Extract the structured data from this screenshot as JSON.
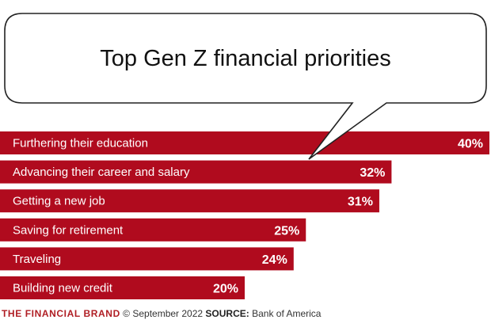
{
  "chart_data": {
    "type": "bar",
    "orientation": "horizontal",
    "title": "Top Gen Z financial priorities",
    "categories": [
      "Furthering their education",
      "Advancing their career and salary",
      "Getting a new job",
      "Saving for retirement",
      "Traveling",
      "Building new credit"
    ],
    "values": [
      40,
      32,
      31,
      25,
      24,
      20
    ],
    "value_labels": [
      "40%",
      "32%",
      "31%",
      "25%",
      "24%",
      "20%"
    ],
    "xlim": [
      0,
      40
    ],
    "grid": false,
    "legend": "none",
    "bar_color": "#b00b1e"
  },
  "footer": {
    "brand": "THE FINANCIAL BRAND",
    "date_text": " © September 2022 ",
    "source_label": "SOURCE:",
    "source_text": " Bank of America"
  },
  "colors": {
    "bar": "#b00b1e",
    "brand": "#b01e24",
    "bubble_stroke": "#222222"
  }
}
